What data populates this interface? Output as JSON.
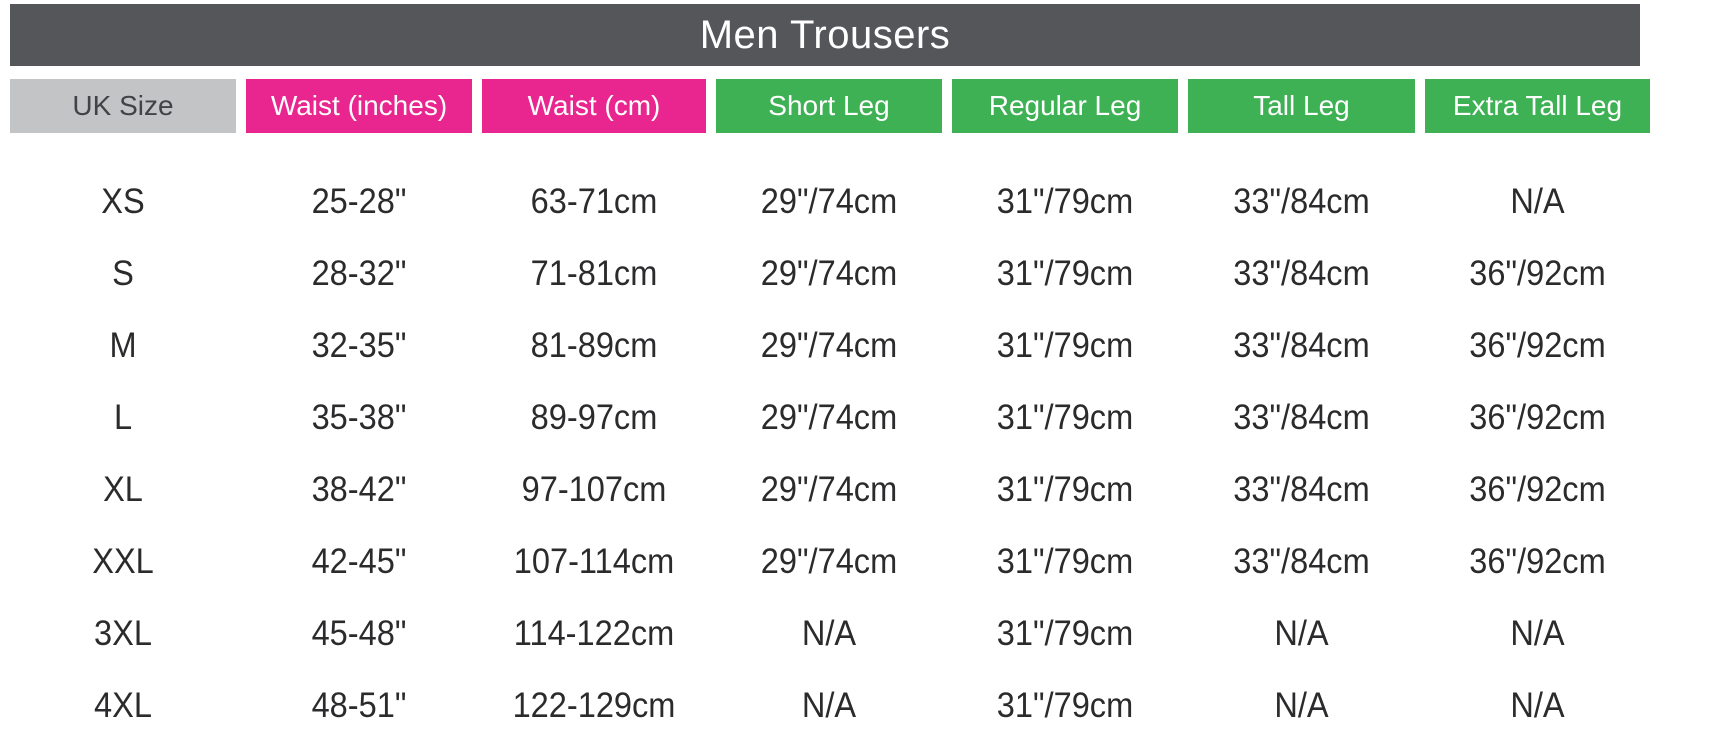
{
  "title": "Men Trousers",
  "colors": {
    "page_bg": "#FFFFFF",
    "title_bar_bg": "#54565A",
    "title_text": "#FFFFFF",
    "uk_size_bg": "#C3C4C6",
    "uk_size_text": "#404347",
    "waist_bg": "#E9268F",
    "leg_bg": "#3FB155",
    "header_text": "#FFFFFF",
    "body_text": "#2B2B2D"
  },
  "chart_data": {
    "type": "table",
    "title": "Men Trousers",
    "columns": [
      "UK Size",
      "Waist (inches)",
      "Waist (cm)",
      "Short Leg",
      "Regular Leg",
      "Tall Leg",
      "Extra Tall Leg"
    ],
    "header_styles": [
      "uk_size",
      "waist",
      "waist",
      "leg",
      "leg",
      "leg",
      "leg"
    ],
    "rows": [
      [
        "XS",
        "25-28\"",
        "63-71cm",
        "29\"/74cm",
        "31\"/79cm",
        "33\"/84cm",
        "N/A"
      ],
      [
        "S",
        "28-32\"",
        "71-81cm",
        "29\"/74cm",
        "31\"/79cm",
        "33\"/84cm",
        "36\"/92cm"
      ],
      [
        "M",
        "32-35\"",
        "81-89cm",
        "29\"/74cm",
        "31\"/79cm",
        "33\"/84cm",
        "36\"/92cm"
      ],
      [
        "L",
        "35-38\"",
        "89-97cm",
        "29\"/74cm",
        "31\"/79cm",
        "33\"/84cm",
        "36\"/92cm"
      ],
      [
        "XL",
        "38-42\"",
        "97-107cm",
        "29\"/74cm",
        "31\"/79cm",
        "33\"/84cm",
        "36\"/92cm"
      ],
      [
        "XXL",
        "42-45\"",
        "107-114cm",
        "29\"/74cm",
        "31\"/79cm",
        "33\"/84cm",
        "36\"/92cm"
      ],
      [
        "3XL",
        "45-48\"",
        "114-122cm",
        "N/A",
        "31\"/79cm",
        "N/A",
        "N/A"
      ],
      [
        "4XL",
        "48-51\"",
        "122-129cm",
        "N/A",
        "31\"/79cm",
        "N/A",
        "N/A"
      ]
    ]
  }
}
